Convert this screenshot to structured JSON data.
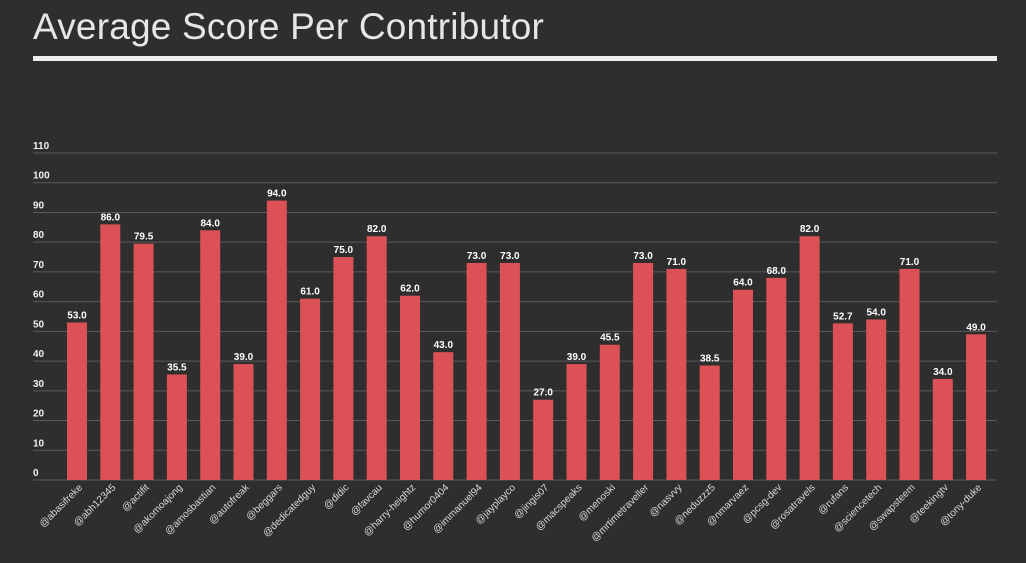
{
  "chart_data": {
    "type": "bar",
    "title": "Average Score Per Contributor",
    "ylim": [
      0,
      110
    ],
    "yticks": [
      0,
      10,
      20,
      30,
      40,
      50,
      60,
      70,
      80,
      90,
      100,
      110
    ],
    "grid": true,
    "colors": {
      "bar": "#dc5155",
      "background": "#2e2e2e"
    },
    "categories": [
      "@abasifreke",
      "@abh12345",
      "@actifit",
      "@akomoajong",
      "@amosbastian",
      "@autofreak",
      "@beggars",
      "@dedicatedguy",
      "@didic",
      "@favcau",
      "@harry-heightz",
      "@humor0404",
      "@immanuel94",
      "@jayplayco",
      "@jingis07",
      "@macspeaks",
      "@menoski",
      "@mrtimetraveller",
      "@nasvvy",
      "@neduzzz5",
      "@nmarvaez",
      "@pcsg-dev",
      "@rosatravels",
      "@rufans",
      "@sciencetech",
      "@swapsteem",
      "@teekingtv",
      "@tony-duke"
    ],
    "values": [
      53.0,
      86.0,
      79.5,
      35.5,
      84.0,
      39.0,
      94.0,
      61.0,
      75.0,
      82.0,
      62.0,
      43.0,
      73.0,
      73.0,
      27.0,
      39.0,
      45.5,
      73.0,
      71.0,
      38.5,
      64.0,
      68.0,
      82.0,
      52.7,
      54.0,
      71.0,
      34.0,
      49.0
    ],
    "value_labels": [
      "53.0",
      "86.0",
      "79.5",
      "35.5",
      "84.0",
      "39.0",
      "94.0",
      "61.0",
      "75.0",
      "82.0",
      "62.0",
      "43.0",
      "73.0",
      "73.0",
      "27.0",
      "39.0",
      "45.5",
      "73.0",
      "71.0",
      "38.5",
      "64.0",
      "68.0",
      "82.0",
      "52.7",
      "54.0",
      "71.0",
      "34.0",
      "49.0"
    ]
  }
}
